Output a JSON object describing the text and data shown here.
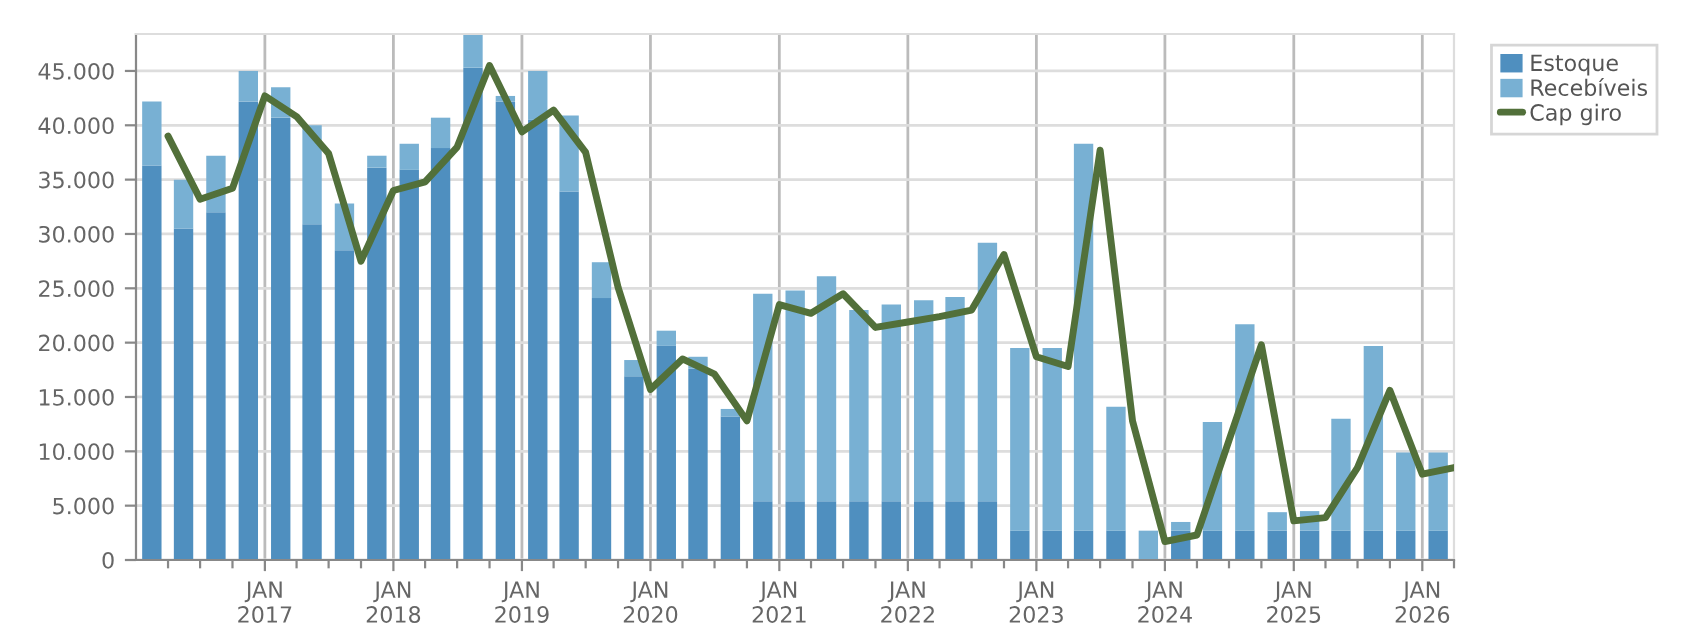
{
  "chart_data": {
    "type": "bar",
    "stacked": true,
    "x": [
      "2016-02-15",
      "2016-05-15",
      "2016-08-15",
      "2016-11-15",
      "2017-02-15",
      "2017-05-15",
      "2017-08-15",
      "2017-11-15",
      "2018-02-15",
      "2018-05-15",
      "2018-08-15",
      "2018-11-15",
      "2019-02-15",
      "2019-05-15",
      "2019-08-15",
      "2019-11-15",
      "2020-02-15",
      "2020-05-15",
      "2020-08-15",
      "2020-11-15",
      "2021-02-15",
      "2021-05-15",
      "2021-08-15",
      "2021-11-15",
      "2022-02-15",
      "2022-05-15",
      "2022-08-15",
      "2022-11-15",
      "2023-02-15",
      "2023-05-15",
      "2023-08-15",
      "2023-11-15",
      "2024-02-15",
      "2024-05-15",
      "2024-08-15",
      "2024-11-15",
      "2025-02-15",
      "2025-05-15",
      "2025-08-15",
      "2025-11-15",
      "2026-02-15"
    ],
    "series": [
      {
        "name": "Estoque",
        "color": "#4f8fbf",
        "values": [
          36300,
          30500,
          32000,
          42200,
          40700,
          30900,
          28500,
          36100,
          35900,
          37900,
          45300,
          42200,
          40500,
          33900,
          24100,
          16900,
          19700,
          17600,
          13200,
          5400,
          5400,
          5400,
          5400,
          5400,
          5400,
          5400,
          5400,
          2700,
          2700,
          2700,
          2700,
          0,
          2700,
          2700,
          2700,
          2700,
          2700,
          2700,
          2700,
          2700,
          2700
        ]
      },
      {
        "name": "Recebíveis",
        "color": "#78b0d3",
        "values": [
          5900,
          4500,
          5200,
          2800,
          2800,
          9100,
          4300,
          1100,
          2400,
          2800,
          3100,
          500,
          4500,
          7000,
          3300,
          1500,
          1400,
          1100,
          700,
          19100,
          19400,
          20700,
          17600,
          18100,
          18500,
          18800,
          23800,
          16800,
          16800,
          35600,
          11400,
          2700,
          800,
          10000,
          19000,
          1700,
          1800,
          10300,
          17000,
          7200,
          7200
        ]
      },
      {
        "name": "Cap giro",
        "type": "line",
        "color": "#52703a",
        "line_style": "solid",
        "x": [
          "2016-04-01",
          "2016-07-01",
          "2016-10-01",
          "2017-01-01",
          "2017-04-01",
          "2017-07-01",
          "2017-10-01",
          "2018-01-01",
          "2018-04-01",
          "2018-07-01",
          "2018-10-01",
          "2019-01-01",
          "2019-04-01",
          "2019-07-01",
          "2019-10-01",
          "2020-01-01",
          "2020-04-01",
          "2020-07-01",
          "2020-10-01",
          "2021-01-01",
          "2021-04-01",
          "2021-07-01",
          "2021-10-01",
          "2022-01-01",
          "2022-04-01",
          "2022-07-01",
          "2022-10-01",
          "2023-01-01",
          "2023-04-01",
          "2023-07-01",
          "2023-10-01",
          "2024-01-01",
          "2024-04-01",
          "2024-07-01",
          "2024-10-01",
          "2025-01-01",
          "2025-04-01",
          "2025-07-01",
          "2025-10-01",
          "2026-01-01",
          "2026-04-01"
        ],
        "values": [
          39000,
          33200,
          34200,
          42700,
          40800,
          37400,
          27500,
          34000,
          34800,
          38000,
          45500,
          39400,
          41400,
          37500,
          25100,
          15700,
          18500,
          17100,
          12800,
          23500,
          22700,
          24500,
          21400,
          21900,
          22400,
          23000,
          28100,
          18700,
          17800,
          37700,
          12800,
          1700,
          2300,
          11000,
          19800,
          3600,
          3900,
          8500,
          15600,
          7900,
          8500
        ]
      }
    ],
    "xlim": [
      "2016-01-01",
      "2026-04-01"
    ],
    "xticks": [
      {
        "value": "2016-04-01",
        "label": null
      },
      {
        "value": "2016-07-01",
        "label": null
      },
      {
        "value": "2016-10-01",
        "label": null
      },
      {
        "value": "2017-01-01",
        "label": "JAN\n2017"
      },
      {
        "value": "2017-04-01",
        "label": null
      },
      {
        "value": "2017-07-01",
        "label": null
      },
      {
        "value": "2017-10-01",
        "label": null
      },
      {
        "value": "2018-01-01",
        "label": "JAN\n2018"
      },
      {
        "value": "2018-04-01",
        "label": null
      },
      {
        "value": "2018-07-01",
        "label": null
      },
      {
        "value": "2018-10-01",
        "label": null
      },
      {
        "value": "2019-01-01",
        "label": "JAN\n2019"
      },
      {
        "value": "2019-04-01",
        "label": null
      },
      {
        "value": "2019-07-01",
        "label": null
      },
      {
        "value": "2019-10-01",
        "label": null
      },
      {
        "value": "2020-01-01",
        "label": "JAN\n2020"
      },
      {
        "value": "2020-04-01",
        "label": null
      },
      {
        "value": "2020-07-01",
        "label": null
      },
      {
        "value": "2020-10-01",
        "label": null
      },
      {
        "value": "2021-01-01",
        "label": "JAN\n2021"
      },
      {
        "value": "2021-04-01",
        "label": null
      },
      {
        "value": "2021-07-01",
        "label": null
      },
      {
        "value": "2021-10-01",
        "label": null
      },
      {
        "value": "2022-01-01",
        "label": "JAN\n2022"
      },
      {
        "value": "2022-04-01",
        "label": null
      },
      {
        "value": "2022-07-01",
        "label": null
      },
      {
        "value": "2022-10-01",
        "label": null
      },
      {
        "value": "2023-01-01",
        "label": "JAN\n2023"
      },
      {
        "value": "2023-04-01",
        "label": null
      },
      {
        "value": "2023-07-01",
        "label": null
      },
      {
        "value": "2023-10-01",
        "label": null
      },
      {
        "value": "2024-01-01",
        "label": "JAN\n2024"
      },
      {
        "value": "2024-04-01",
        "label": null
      },
      {
        "value": "2024-07-01",
        "label": null
      },
      {
        "value": "2024-10-01",
        "label": null
      },
      {
        "value": "2025-01-01",
        "label": "JAN\n2025"
      },
      {
        "value": "2025-04-01",
        "label": null
      },
      {
        "value": "2025-07-01",
        "label": null
      },
      {
        "value": "2025-10-01",
        "label": null
      },
      {
        "value": "2026-01-01",
        "label": "JAN\n2026"
      },
      {
        "value": "2026-04-01",
        "label": null
      }
    ],
    "ylim": [
      0,
      48400
    ],
    "yticks": [
      {
        "value": 0,
        "label": "0"
      },
      {
        "value": 5000,
        "label": "5.000"
      },
      {
        "value": 10000,
        "label": "10.000"
      },
      {
        "value": 15000,
        "label": "15.000"
      },
      {
        "value": 20000,
        "label": "20.000"
      },
      {
        "value": 25000,
        "label": "25.000"
      },
      {
        "value": 30000,
        "label": "30.000"
      },
      {
        "value": 35000,
        "label": "35.000"
      },
      {
        "value": 40000,
        "label": "40.000"
      },
      {
        "value": 45000,
        "label": "45.000"
      }
    ],
    "grid": true,
    "legend": "top right"
  }
}
